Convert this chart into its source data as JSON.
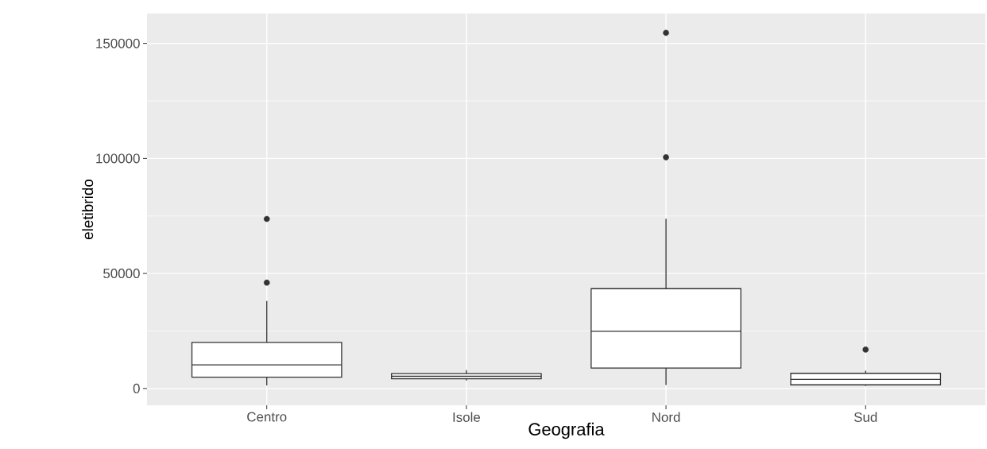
{
  "chart_data": {
    "type": "box",
    "xlabel": "Geografia",
    "ylabel": "eletibrido",
    "categories": [
      "Centro",
      "Isole",
      "Nord",
      "Sud"
    ],
    "boxes": [
      {
        "low": 1300,
        "q1": 4900,
        "median": 10300,
        "q3": 20000,
        "high": 38000,
        "outliers": [
          46000,
          73700
        ]
      },
      {
        "low": 3500,
        "q1": 4200,
        "median": 5300,
        "q3": 6500,
        "high": 8000
      },
      {
        "low": 1500,
        "q1": 8900,
        "median": 24900,
        "q3": 43400,
        "high": 73800,
        "outliers": [
          100500,
          154600
        ]
      },
      {
        "low": 1100,
        "q1": 1600,
        "median": 4000,
        "q3": 6600,
        "high": 7700,
        "outliers": [
          16900
        ]
      }
    ],
    "ylim": [
      -7300,
      163000
    ],
    "yticks": [
      0,
      50000,
      100000,
      150000
    ],
    "grid": true
  }
}
